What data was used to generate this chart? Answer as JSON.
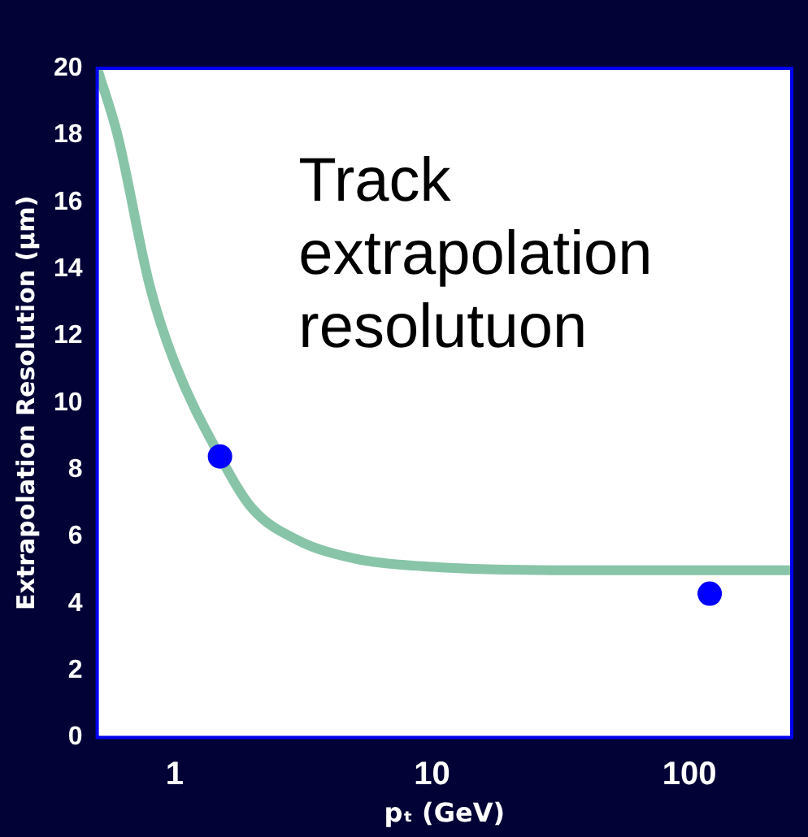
{
  "chart_data": {
    "type": "line",
    "xlabel": "pₜ (GeV)",
    "ylabel": "Extrapolation Resolution (μm)",
    "annotations": [
      "Track extrapolation resolutuon"
    ],
    "log": "x",
    "xlim": [
      0.5,
      250
    ],
    "xticks": [
      1,
      10,
      100
    ],
    "ylim": [
      0,
      20
    ],
    "yticks": [
      0,
      2,
      4,
      6,
      8,
      10,
      12,
      14,
      16,
      18,
      20
    ],
    "grid": false,
    "legend": false,
    "series": [
      {
        "color": "#88c4a8",
        "marker": "none",
        "x": [
          0.5,
          0.6,
          0.8,
          1,
          1.5,
          2,
          3,
          5,
          10,
          30,
          100,
          250
        ],
        "values": [
          20,
          18.0,
          13.5,
          11.2,
          8.4,
          6.85,
          5.9,
          5.35,
          5.1,
          5.0,
          5.0,
          5.0
        ]
      },
      {
        "type": "scatter",
        "color": "#0000ff",
        "marker": "circle",
        "x": [
          1.5,
          120
        ],
        "values": [
          8.4,
          4.3
        ]
      }
    ]
  }
}
